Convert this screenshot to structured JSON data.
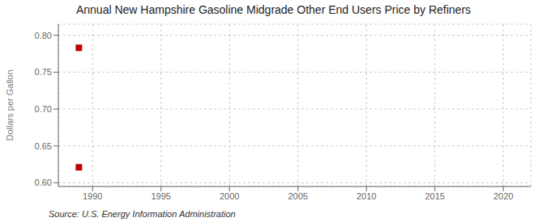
{
  "chart_data": {
    "type": "scatter",
    "title": "Annual New Hampshire Gasoline Midgrade Other End Users Price by Refiners",
    "y_label": "Dollars per Gallon",
    "annotations": [
      "Source: U.S. Energy Information Administration"
    ],
    "x": [
      1989,
      1989
    ],
    "values": [
      0.783,
      0.621
    ],
    "color": "#c00000",
    "marker": "square",
    "xlim": [
      1987.5,
      2022
    ],
    "ylim": [
      0.595,
      0.815
    ],
    "xticks": [
      1990,
      1995,
      2000,
      2005,
      2010,
      2015,
      2020
    ],
    "yticks": [
      {
        "value": 0.6,
        "label": "0.60"
      },
      0.65,
      {
        "value": 0.7,
        "label": "0.70"
      },
      0.75,
      {
        "value": 0.8,
        "label": "0.80"
      }
    ],
    "grid": true
  }
}
